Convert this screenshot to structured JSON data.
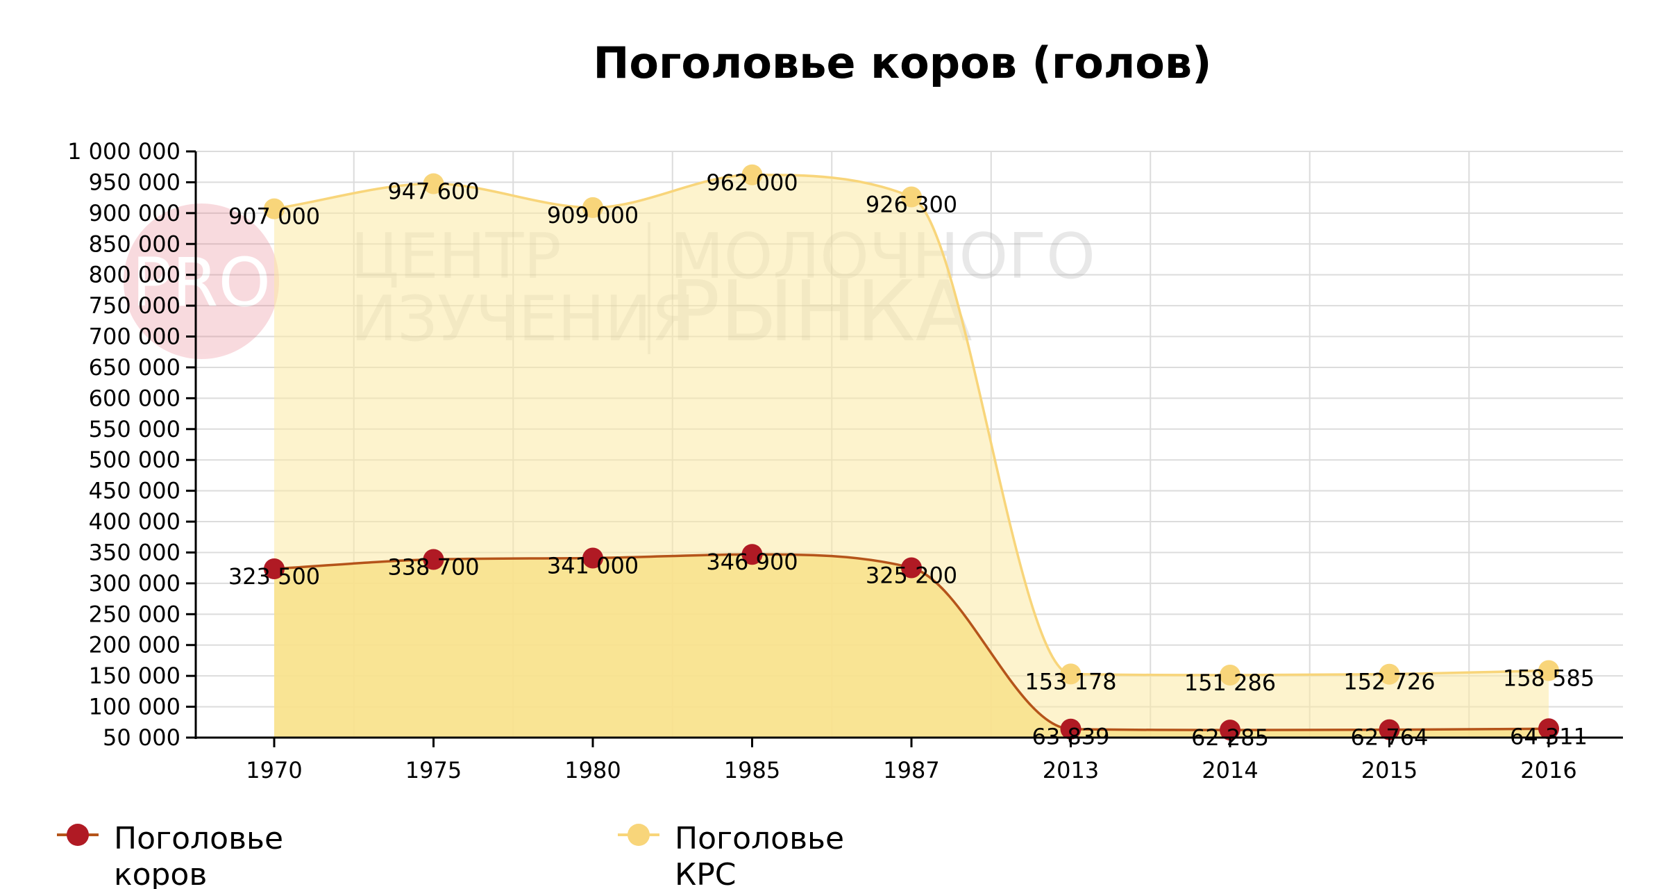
{
  "chart_data": {
    "type": "area",
    "title": "Поголовье коров (голов)",
    "categories": [
      "1970",
      "1975",
      "1980",
      "1985",
      "1987",
      "2013",
      "2014",
      "2015",
      "2016"
    ],
    "ylim": [
      50000,
      1000000
    ],
    "yticks": [
      50000,
      100000,
      150000,
      200000,
      250000,
      300000,
      350000,
      400000,
      450000,
      500000,
      550000,
      600000,
      650000,
      700000,
      750000,
      800000,
      850000,
      900000,
      950000,
      1000000
    ],
    "ytick_labels": [
      "50 000",
      "100 000",
      "150 000",
      "200 000",
      "250 000",
      "300 000",
      "350 000",
      "400 000",
      "450 000",
      "500 000",
      "550 000",
      "600 000",
      "650 000",
      "700 000",
      "750 000",
      "800 000",
      "850 000",
      "900 000",
      "950 000",
      "1 000 000"
    ],
    "grid": true,
    "legend_position": "bottom-left",
    "series": [
      {
        "name": "Поголовье КРС",
        "legend_label_lines": [
          "Поголовье",
          "КРС"
        ],
        "color": "#f8d57a",
        "fill": "#fbe9a4",
        "values": [
          907000,
          947600,
          909000,
          962000,
          926300,
          153178,
          151286,
          152726,
          158585
        ],
        "labels": [
          "907 000",
          "947 600",
          "909 000",
          "962 000",
          "926 300",
          "153 178",
          "151 286",
          "152 726",
          "158 585"
        ]
      },
      {
        "name": "Поголовье коров",
        "legend_label_lines": [
          "Поголовье",
          "коров"
        ],
        "color": "#b01a24",
        "line_color": "#b5541a",
        "fill": "#f8e08a",
        "values": [
          323500,
          338700,
          341000,
          346900,
          325200,
          63839,
          62285,
          62764,
          64311
        ],
        "labels": [
          "323 500",
          "338 700",
          "341 000",
          "346 900",
          "325 200",
          "63 839",
          "62 285",
          "62 764",
          "64 311"
        ]
      }
    ],
    "watermark": {
      "badge": "PRO",
      "lines": [
        "ЦЕНТР",
        "ИЗУЧЕНИЯ",
        "МОЛОЧНОГО",
        "РЫНКА"
      ]
    }
  }
}
